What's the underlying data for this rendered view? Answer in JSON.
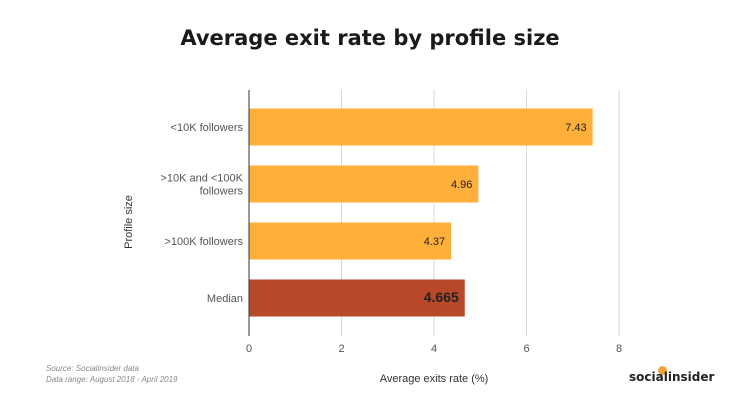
{
  "chart_data": {
    "type": "bar",
    "orientation": "horizontal",
    "title": "Average exit rate by profile size",
    "xlabel": "Average exits rate (%)",
    "ylabel": "Profile size",
    "xlim": [
      0,
      8
    ],
    "xticks": [
      "0",
      "2",
      "4",
      "6",
      "8"
    ],
    "grid": true,
    "categories": [
      [
        "<10K followers"
      ],
      [
        ">10K and <100K",
        "followers"
      ],
      [
        ">100K followers"
      ],
      [
        "Median"
      ]
    ],
    "values": [
      7.43,
      4.96,
      4.37,
      4.665
    ],
    "value_labels": [
      "7.43",
      "4.96",
      "4.37",
      "4.665"
    ],
    "colors": [
      "#ffb03b",
      "#ffb03b",
      "#ffb03b",
      "#b8482a"
    ]
  },
  "footer": {
    "source": "Source: Socialinsider data",
    "date_range": "Data range: August 2018 - April 2019",
    "brand": "socialinsider"
  }
}
